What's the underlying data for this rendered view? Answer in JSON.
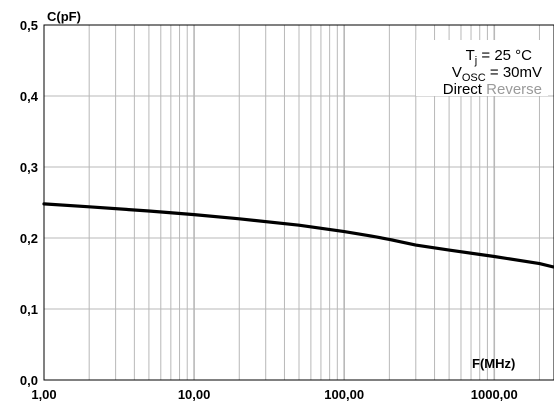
{
  "chart_data": {
    "type": "line",
    "x_scale": "log",
    "ylabel": "C(pF)",
    "xlabel": "F(MHz)",
    "xlim": [
      1,
      2500
    ],
    "ylim": [
      0,
      0.5
    ],
    "grid": true,
    "x_tick_labels": [
      "1,00",
      "10,00",
      "100,00",
      "1000,00"
    ],
    "x_tick_values": [
      1,
      10,
      100,
      1000
    ],
    "y_tick_labels": [
      "0,0",
      "0,1",
      "0,2",
      "0,3",
      "0,4",
      "0,5"
    ],
    "y_tick_values": [
      0,
      0.1,
      0.2,
      0.3,
      0.4,
      0.5
    ],
    "series": [
      {
        "name": "Direct",
        "color": "#000000",
        "x": [
          1,
          2,
          5,
          10,
          20,
          50,
          100,
          150,
          200,
          300,
          500,
          1000,
          2000,
          2500
        ],
        "y": [
          0.248,
          0.244,
          0.238,
          0.233,
          0.227,
          0.218,
          0.209,
          0.203,
          0.198,
          0.19,
          0.183,
          0.174,
          0.164,
          0.159
        ]
      }
    ],
    "annotations": {
      "tj_main": "T",
      "tj_sub": "j",
      "tj_value": " = 25 °C",
      "vosc_main": "V",
      "vosc_sub": "OSC",
      "vosc_value": " = 30mV",
      "mode_direct": "Direct",
      "mode_reverse": "Reverse"
    },
    "colors": {
      "grid": "#b8b8b8",
      "curve": "#000000",
      "reverse_text": "#9a9a9a"
    }
  }
}
